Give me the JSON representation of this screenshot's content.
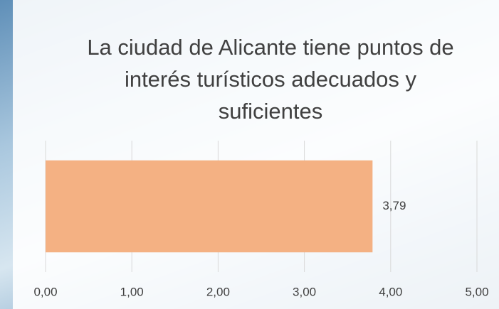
{
  "chart_data": {
    "type": "hbar",
    "title": "La ciudad de Alicante tiene puntos de interés turísticos adecuados y suficientes",
    "values": [
      3.79
    ],
    "value_labels": [
      "3,79"
    ],
    "color": "#f4b183",
    "xlim": [
      0,
      5
    ],
    "xticks": [
      {
        "value": 0,
        "label": "0,00"
      },
      {
        "value": 1,
        "label": "1,00"
      },
      {
        "value": 2,
        "label": "2,00"
      },
      {
        "value": 3,
        "label": "3,00"
      },
      {
        "value": 4,
        "label": "4,00"
      },
      {
        "value": 5,
        "label": "5,00"
      }
    ],
    "grid": true
  }
}
